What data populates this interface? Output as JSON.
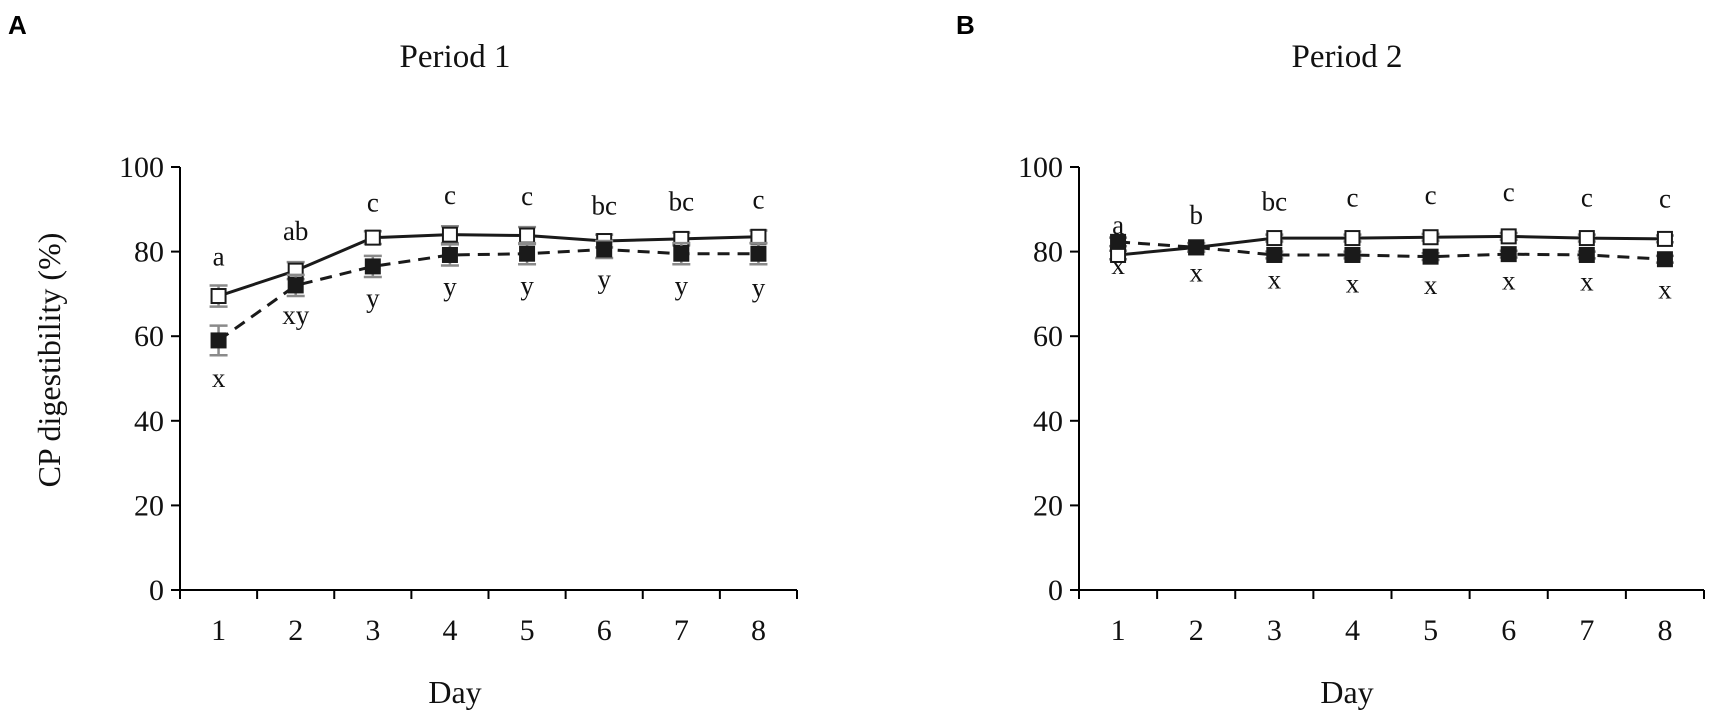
{
  "chart_data": [
    {
      "panel": "A",
      "type": "line",
      "title": "Period 1",
      "xlabel": "Day",
      "ylabel": "CP digestibility (%)",
      "x": [
        1,
        2,
        3,
        4,
        5,
        6,
        7,
        8
      ],
      "ylim": [
        0,
        100
      ],
      "yticks": [
        0,
        20,
        40,
        60,
        80,
        100
      ],
      "series": [
        {
          "marker": "open-square",
          "line": "solid",
          "values": [
            69.5,
            75.5,
            83.3,
            84.0,
            83.8,
            82.5,
            83.0,
            83.5
          ],
          "error": [
            2.5,
            2.0,
            1.5,
            2.0,
            2.0,
            1.5,
            1.5,
            1.5
          ],
          "letters": [
            "a",
            "ab",
            "c",
            "c",
            "c",
            "bc",
            "bc",
            "c"
          ]
        },
        {
          "marker": "filled-square",
          "line": "dashed",
          "values": [
            59.0,
            72.0,
            76.5,
            79.2,
            79.5,
            80.5,
            79.5,
            79.5
          ],
          "error": [
            3.5,
            2.5,
            2.5,
            2.5,
            2.5,
            2.0,
            2.5,
            2.5
          ],
          "letters": [
            "x",
            "xy",
            "y",
            "y",
            "y",
            "y",
            "y",
            "y"
          ]
        }
      ]
    },
    {
      "panel": "B",
      "type": "line",
      "title": "Period 2",
      "xlabel": "Day",
      "ylabel": "",
      "x": [
        1,
        2,
        3,
        4,
        5,
        6,
        7,
        8
      ],
      "ylim": [
        0,
        100
      ],
      "yticks": [
        0,
        20,
        40,
        60,
        80,
        100
      ],
      "series": [
        {
          "marker": "open-square",
          "line": "solid",
          "values": [
            79.2,
            81.0,
            83.2,
            83.2,
            83.4,
            83.6,
            83.2,
            83.0
          ],
          "error": [
            1.0,
            1.0,
            0.8,
            0.8,
            0.8,
            0.8,
            0.8,
            0.8
          ],
          "letters": [
            "a",
            "b",
            "bc",
            "c",
            "c",
            "c",
            "c",
            "c"
          ]
        },
        {
          "marker": "filled-square",
          "line": "dashed",
          "values": [
            82.3,
            81.0,
            79.2,
            79.2,
            78.8,
            79.4,
            79.2,
            78.2
          ],
          "error": [
            1.0,
            1.0,
            0.8,
            0.8,
            0.8,
            0.8,
            0.8,
            0.8
          ],
          "letters": [
            "x",
            "x",
            "x",
            "x",
            "x",
            "x",
            "x",
            "x"
          ]
        }
      ]
    }
  ],
  "colors": {
    "axis": "#000000",
    "line": "#1a1a1a",
    "marker_fill_open": "#ffffff",
    "marker_fill_filled": "#1a1a1a",
    "error_bar": "#8a8a8a",
    "text": "#111111"
  }
}
